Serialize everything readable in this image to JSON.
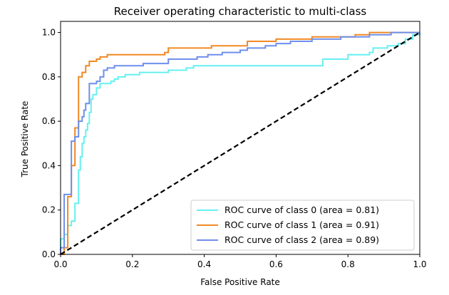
{
  "chart_data": {
    "type": "line",
    "title": "Receiver operating characteristic to multi-class",
    "xlabel": "False Positive Rate",
    "ylabel": "True Positive Rate",
    "xlim": [
      0.0,
      1.0
    ],
    "ylim": [
      0.0,
      1.05
    ],
    "xticks": [
      "0.0",
      "0.2",
      "0.4",
      "0.6",
      "0.8",
      "1.0"
    ],
    "yticks": [
      "0.0",
      "0.2",
      "0.4",
      "0.6",
      "0.8",
      "1.0"
    ],
    "grid": false,
    "legend_position": "lower right",
    "series": [
      {
        "name": "ROC curve of class 0 (area = 0.81)",
        "color": "#66f0f0",
        "step": true,
        "points": [
          [
            0.0,
            0.0
          ],
          [
            0.0,
            0.07
          ],
          [
            0.01,
            0.09
          ],
          [
            0.02,
            0.13
          ],
          [
            0.03,
            0.15
          ],
          [
            0.04,
            0.17
          ],
          [
            0.04,
            0.23
          ],
          [
            0.05,
            0.3
          ],
          [
            0.05,
            0.38
          ],
          [
            0.055,
            0.44
          ],
          [
            0.06,
            0.5
          ],
          [
            0.065,
            0.53
          ],
          [
            0.07,
            0.56
          ],
          [
            0.075,
            0.59
          ],
          [
            0.08,
            0.64
          ],
          [
            0.085,
            0.7
          ],
          [
            0.09,
            0.72
          ],
          [
            0.1,
            0.75
          ],
          [
            0.11,
            0.77
          ],
          [
            0.14,
            0.78
          ],
          [
            0.15,
            0.79
          ],
          [
            0.16,
            0.8
          ],
          [
            0.18,
            0.81
          ],
          [
            0.22,
            0.82
          ],
          [
            0.3,
            0.83
          ],
          [
            0.35,
            0.84
          ],
          [
            0.37,
            0.85
          ],
          [
            0.5,
            0.85
          ],
          [
            0.72,
            0.85
          ],
          [
            0.73,
            0.88
          ],
          [
            0.78,
            0.88
          ],
          [
            0.8,
            0.9
          ],
          [
            0.86,
            0.91
          ],
          [
            0.87,
            0.93
          ],
          [
            0.9,
            0.93
          ],
          [
            0.91,
            0.94
          ],
          [
            0.94,
            0.95
          ],
          [
            0.96,
            0.97
          ],
          [
            0.98,
            0.99
          ],
          [
            1.0,
            1.0
          ]
        ]
      },
      {
        "name": "ROC curve of class 1 (area = 0.91)",
        "color": "#f08a24",
        "step": true,
        "points": [
          [
            0.0,
            0.0
          ],
          [
            0.01,
            0.03
          ],
          [
            0.02,
            0.26
          ],
          [
            0.03,
            0.4
          ],
          [
            0.04,
            0.57
          ],
          [
            0.05,
            0.8
          ],
          [
            0.06,
            0.82
          ],
          [
            0.07,
            0.85
          ],
          [
            0.08,
            0.87
          ],
          [
            0.1,
            0.88
          ],
          [
            0.11,
            0.89
          ],
          [
            0.13,
            0.9
          ],
          [
            0.2,
            0.9
          ],
          [
            0.29,
            0.91
          ],
          [
            0.3,
            0.93
          ],
          [
            0.4,
            0.93
          ],
          [
            0.42,
            0.94
          ],
          [
            0.5,
            0.94
          ],
          [
            0.52,
            0.96
          ],
          [
            0.6,
            0.97
          ],
          [
            0.68,
            0.97
          ],
          [
            0.7,
            0.98
          ],
          [
            0.8,
            0.98
          ],
          [
            0.82,
            0.99
          ],
          [
            0.86,
            1.0
          ],
          [
            0.92,
            1.0
          ],
          [
            1.0,
            1.0
          ]
        ]
      },
      {
        "name": "ROC curve of class 2 (area = 0.89)",
        "color": "#6f8fec",
        "step": true,
        "points": [
          [
            0.0,
            0.0
          ],
          [
            0.0,
            0.03
          ],
          [
            0.01,
            0.27
          ],
          [
            0.02,
            0.27
          ],
          [
            0.03,
            0.33
          ],
          [
            0.03,
            0.51
          ],
          [
            0.04,
            0.53
          ],
          [
            0.05,
            0.58
          ],
          [
            0.05,
            0.6
          ],
          [
            0.06,
            0.62
          ],
          [
            0.065,
            0.65
          ],
          [
            0.07,
            0.68
          ],
          [
            0.08,
            0.77
          ],
          [
            0.09,
            0.77
          ],
          [
            0.1,
            0.78
          ],
          [
            0.11,
            0.8
          ],
          [
            0.12,
            0.83
          ],
          [
            0.13,
            0.84
          ],
          [
            0.15,
            0.85
          ],
          [
            0.16,
            0.85
          ],
          [
            0.23,
            0.86
          ],
          [
            0.3,
            0.88
          ],
          [
            0.38,
            0.89
          ],
          [
            0.41,
            0.9
          ],
          [
            0.45,
            0.91
          ],
          [
            0.5,
            0.92
          ],
          [
            0.52,
            0.93
          ],
          [
            0.57,
            0.94
          ],
          [
            0.6,
            0.95
          ],
          [
            0.64,
            0.96
          ],
          [
            0.7,
            0.97
          ],
          [
            0.75,
            0.97
          ],
          [
            0.78,
            0.98
          ],
          [
            0.82,
            0.98
          ],
          [
            0.86,
            0.99
          ],
          [
            0.92,
            1.0
          ],
          [
            1.0,
            1.0
          ]
        ]
      },
      {
        "name": "",
        "color": "#000000",
        "dashed": true,
        "step": false,
        "points": [
          [
            0.0,
            0.0
          ],
          [
            1.0,
            1.0
          ]
        ]
      }
    ],
    "legend": [
      {
        "label": "ROC curve of class 0 (area = 0.81)",
        "color": "#66f0f0"
      },
      {
        "label": "ROC curve of class 1 (area = 0.91)",
        "color": "#f08a24"
      },
      {
        "label": "ROC curve of class 2 (area = 0.89)",
        "color": "#6f8fec"
      }
    ]
  }
}
